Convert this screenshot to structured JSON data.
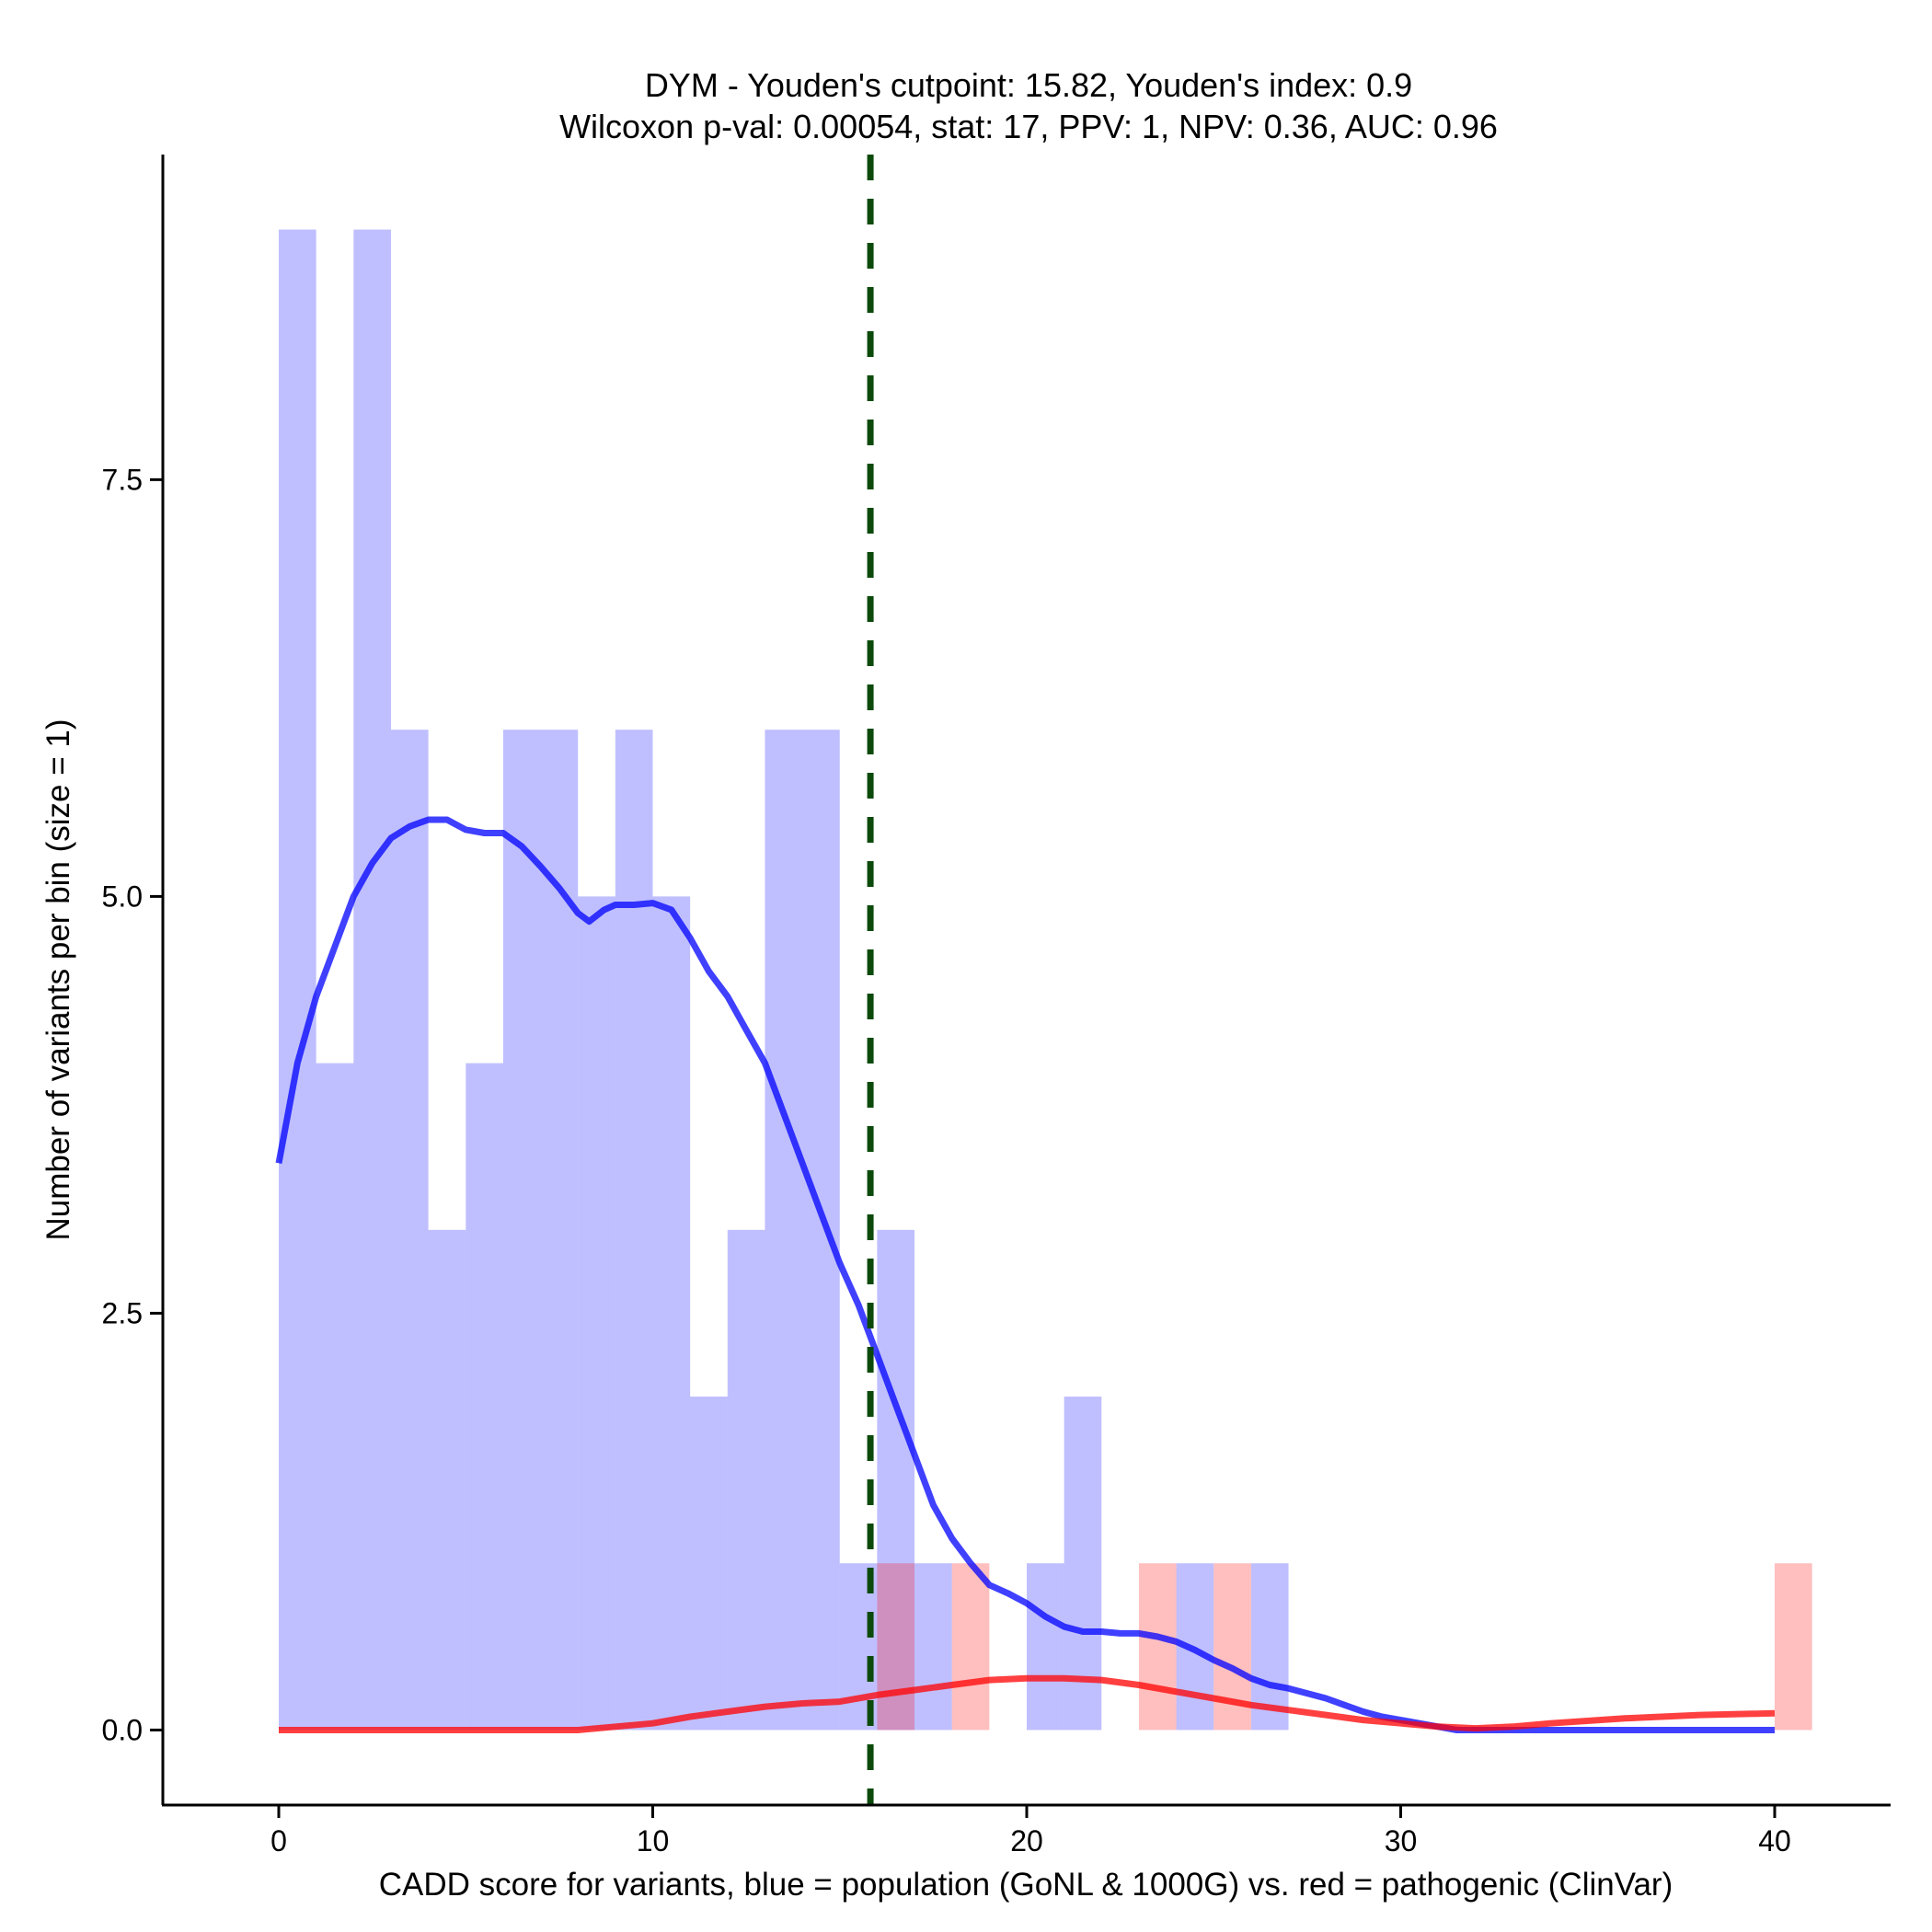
{
  "chart_data": {
    "type": "histogram",
    "title_line1": "DYM - Youden's cutpoint: 15.82, Youden's index: 0.9",
    "title_line2": "Wilcoxon p-val: 0.00054, stat: 17, PPV: 1, NPV: 0.36, AUC: 0.96",
    "xlabel": "CADD score for variants, blue = population (GoNL & 1000G) vs. red = pathogenic (ClinVar)",
    "ylabel": "Number of variants per bin (size = 1)",
    "xlim": [
      -3.1,
      43.1
    ],
    "ylim": [
      -0.45,
      9.45
    ],
    "x_ticks": [
      0,
      10,
      20,
      30,
      40
    ],
    "x_tick_labels": [
      "0",
      "10",
      "20",
      "30",
      "40"
    ],
    "y_ticks": [
      0,
      2.5,
      5,
      7.5
    ],
    "y_tick_labels": [
      "0.0",
      "2.5",
      "5.0",
      "7.5"
    ],
    "bin_width": 1,
    "cutpoint": 15.82,
    "series": [
      {
        "name": "population (GoNL & 1000G)",
        "color": "#0000ff",
        "bins": [
          {
            "x0": 0,
            "count": 9
          },
          {
            "x0": 1,
            "count": 4
          },
          {
            "x0": 2,
            "count": 9
          },
          {
            "x0": 3,
            "count": 6
          },
          {
            "x0": 4,
            "count": 3
          },
          {
            "x0": 5,
            "count": 4
          },
          {
            "x0": 6,
            "count": 6
          },
          {
            "x0": 7,
            "count": 6
          },
          {
            "x0": 8,
            "count": 5
          },
          {
            "x0": 9,
            "count": 6
          },
          {
            "x0": 10,
            "count": 5
          },
          {
            "x0": 11,
            "count": 2
          },
          {
            "x0": 12,
            "count": 3
          },
          {
            "x0": 13,
            "count": 6
          },
          {
            "x0": 14,
            "count": 6
          },
          {
            "x0": 15,
            "count": 1
          },
          {
            "x0": 16,
            "count": 3
          },
          {
            "x0": 17,
            "count": 1
          },
          {
            "x0": 20,
            "count": 1
          },
          {
            "x0": 21,
            "count": 2
          },
          {
            "x0": 24,
            "count": 1
          },
          {
            "x0": 26,
            "count": 1
          }
        ],
        "density_curve": [
          [
            0,
            3.4
          ],
          [
            0.5,
            4.0
          ],
          [
            1,
            4.4
          ],
          [
            1.5,
            4.7
          ],
          [
            2,
            5.0
          ],
          [
            2.5,
            5.2
          ],
          [
            3,
            5.35
          ],
          [
            3.5,
            5.42
          ],
          [
            4,
            5.46
          ],
          [
            4.5,
            5.46
          ],
          [
            5,
            5.4
          ],
          [
            5.5,
            5.38
          ],
          [
            6,
            5.38
          ],
          [
            6.5,
            5.3
          ],
          [
            7,
            5.18
          ],
          [
            7.5,
            5.05
          ],
          [
            8,
            4.9
          ],
          [
            8.3,
            4.85
          ],
          [
            8.7,
            4.92
          ],
          [
            9,
            4.95
          ],
          [
            9.5,
            4.95
          ],
          [
            10,
            4.96
          ],
          [
            10.5,
            4.92
          ],
          [
            11,
            4.75
          ],
          [
            11.5,
            4.55
          ],
          [
            12,
            4.4
          ],
          [
            12.5,
            4.2
          ],
          [
            13,
            4.0
          ],
          [
            13.5,
            3.7
          ],
          [
            14,
            3.4
          ],
          [
            14.5,
            3.1
          ],
          [
            15,
            2.8
          ],
          [
            15.5,
            2.55
          ],
          [
            16,
            2.25
          ],
          [
            16.5,
            1.95
          ],
          [
            17,
            1.65
          ],
          [
            17.5,
            1.35
          ],
          [
            18,
            1.15
          ],
          [
            18.5,
            1.0
          ],
          [
            19,
            0.87
          ],
          [
            19.5,
            0.82
          ],
          [
            20,
            0.76
          ],
          [
            20.5,
            0.68
          ],
          [
            21,
            0.62
          ],
          [
            21.5,
            0.59
          ],
          [
            22,
            0.59
          ],
          [
            22.5,
            0.58
          ],
          [
            23,
            0.58
          ],
          [
            23.5,
            0.56
          ],
          [
            24,
            0.53
          ],
          [
            24.5,
            0.48
          ],
          [
            25,
            0.42
          ],
          [
            25.5,
            0.37
          ],
          [
            26,
            0.31
          ],
          [
            26.5,
            0.27
          ],
          [
            27,
            0.25
          ],
          [
            27.5,
            0.22
          ],
          [
            28,
            0.19
          ],
          [
            28.5,
            0.15
          ],
          [
            29,
            0.11
          ],
          [
            29.5,
            0.08
          ],
          [
            30,
            0.06
          ],
          [
            30.5,
            0.04
          ],
          [
            31,
            0.02
          ],
          [
            31.5,
            0.0
          ],
          [
            32,
            0.0
          ],
          [
            33,
            0.0
          ],
          [
            35,
            0.0
          ],
          [
            37,
            0.0
          ],
          [
            40,
            0.0
          ]
        ]
      },
      {
        "name": "pathogenic (ClinVar)",
        "color": "#ff0000",
        "bins": [
          {
            "x0": 16,
            "count": 1
          },
          {
            "x0": 18,
            "count": 1
          },
          {
            "x0": 23,
            "count": 1
          },
          {
            "x0": 25,
            "count": 1
          },
          {
            "x0": 40,
            "count": 1
          }
        ],
        "density_curve": [
          [
            0,
            0.0
          ],
          [
            4,
            0.0
          ],
          [
            8,
            0.0
          ],
          [
            9,
            0.02
          ],
          [
            10,
            0.04
          ],
          [
            11,
            0.08
          ],
          [
            12,
            0.11
          ],
          [
            13,
            0.14
          ],
          [
            14,
            0.16
          ],
          [
            15,
            0.17
          ],
          [
            16,
            0.21
          ],
          [
            17,
            0.24
          ],
          [
            18,
            0.27
          ],
          [
            19,
            0.3
          ],
          [
            20,
            0.31
          ],
          [
            21,
            0.31
          ],
          [
            22,
            0.3
          ],
          [
            23,
            0.27
          ],
          [
            24,
            0.23
          ],
          [
            25,
            0.19
          ],
          [
            26,
            0.15
          ],
          [
            27,
            0.12
          ],
          [
            28,
            0.09
          ],
          [
            29,
            0.06
          ],
          [
            30,
            0.04
          ],
          [
            31,
            0.02
          ],
          [
            32,
            0.01
          ],
          [
            33,
            0.02
          ],
          [
            34,
            0.04
          ],
          [
            36,
            0.07
          ],
          [
            38,
            0.09
          ],
          [
            40,
            0.1
          ]
        ]
      }
    ]
  }
}
